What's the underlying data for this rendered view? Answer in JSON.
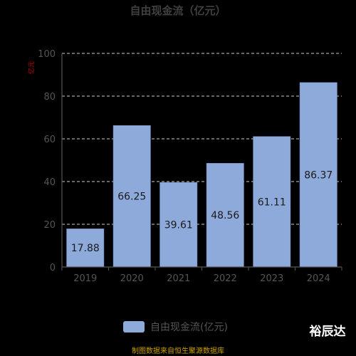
{
  "chart_data": {
    "type": "bar",
    "title": "自由现金流（亿元）",
    "ylabel": "亿元",
    "categories": [
      "2019",
      "2020",
      "2021",
      "2022",
      "2023",
      "2024"
    ],
    "series": [
      {
        "name": "自由现金流(亿元)",
        "values": [
          17.88,
          66.25,
          39.61,
          48.56,
          61.11,
          86.37
        ]
      }
    ],
    "data_labels": [
      "17.88",
      "66.25",
      "39.61",
      "48.56",
      "61.11",
      "86.37"
    ],
    "ylim": [
      0,
      100
    ],
    "yticks": [
      "0",
      "20",
      "40",
      "60",
      "80",
      "100"
    ],
    "grid": true,
    "legend_position": "bottom",
    "colors": {
      "bar": "#8eaadb",
      "background": "#000000",
      "title": "#404040",
      "ylabel": "#cc0000",
      "axis": "#555555",
      "grid": "#cccccc",
      "source": "#c8a000"
    }
  },
  "watermark": "裕辰达",
  "source": "制图数据来自恒生聚源数据库"
}
